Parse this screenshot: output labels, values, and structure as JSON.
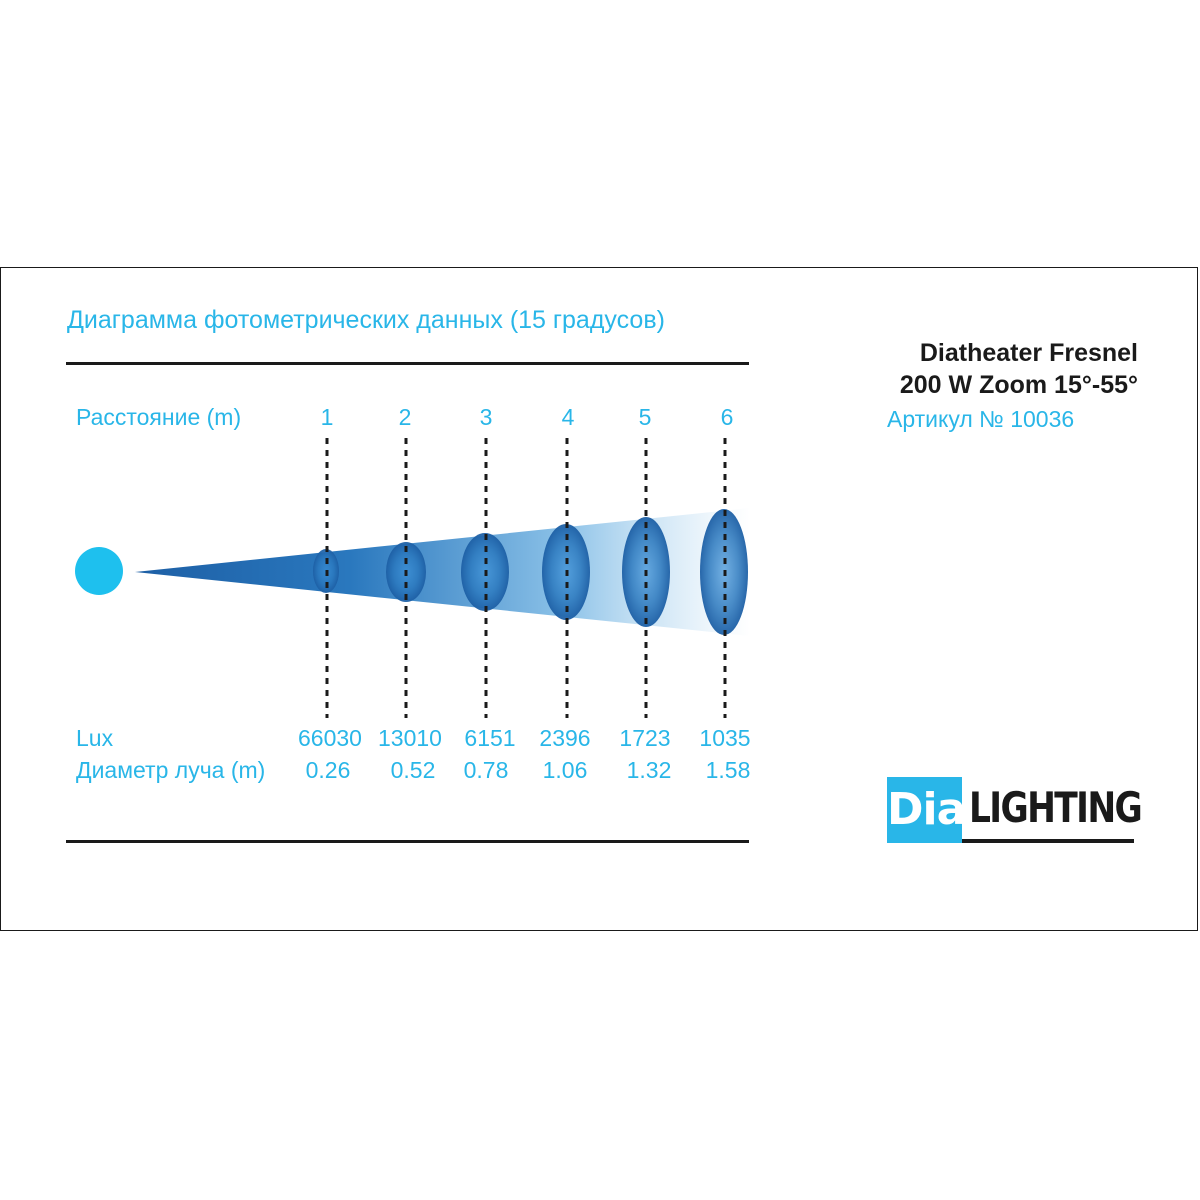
{
  "title": "Диаграмма фотометрических данных (15 градусов)",
  "product": {
    "name_line1": "Diatheater Fresnel",
    "name_line2": "200 W Zoom 15°-55°",
    "article": "Артикул № 10036"
  },
  "rows": {
    "distance_label": "Расстояние (m)",
    "lux_label": "Lux",
    "diameter_label": "Диаметр луча (m)"
  },
  "columns": [
    {
      "distance": "1",
      "lux": "66030",
      "diameter": "0.26"
    },
    {
      "distance": "2",
      "lux": "13010",
      "diameter": "0.52"
    },
    {
      "distance": "3",
      "lux": "6151",
      "diameter": "0.78"
    },
    {
      "distance": "4",
      "lux": "2396",
      "diameter": "1.06"
    },
    {
      "distance": "5",
      "lux": "1723",
      "diameter": "1.32"
    },
    {
      "distance": "6",
      "lux": "1035",
      "diameter": "1.58"
    }
  ],
  "logo": {
    "mark": "Dia",
    "word": "LIGHTING"
  },
  "colors": {
    "accent": "#29b6e8",
    "beam": "#1f6fb5",
    "text": "#1a1a1a"
  }
}
